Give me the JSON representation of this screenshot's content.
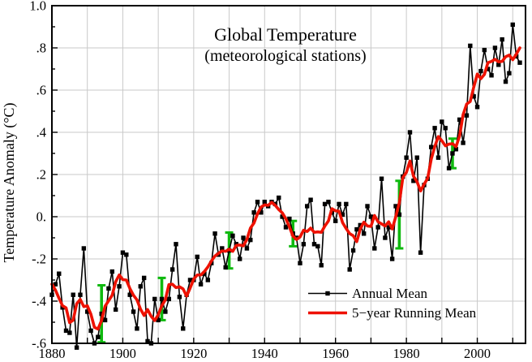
{
  "chart_data": {
    "type": "line",
    "title": "Global Temperature",
    "subtitle": "(meteorological stations)",
    "ylabel": "Temperature Anomaly (°C)",
    "xlabel": "",
    "x_range": [
      1880,
      2013.6
    ],
    "y_range": [
      -0.6,
      1.0
    ],
    "grid": {
      "x_step_years": 10,
      "y_step": 0.2,
      "color": "#c9c9c9",
      "visible": true
    },
    "x_ticks": {
      "label_years": [
        1880,
        1900,
        1920,
        1940,
        1960,
        1980,
        2000
      ],
      "labels": [
        "1880",
        "1900",
        "1920",
        "1940",
        "1960",
        "1980",
        "2000"
      ],
      "minor_step": 10
    },
    "y_ticks": {
      "values": [
        1.0,
        0.8,
        0.6,
        0.4,
        0.2,
        0.0,
        -0.2,
        -0.4,
        -0.6
      ],
      "labels": [
        "1.0",
        ".8",
        ".6",
        ".4",
        ".2",
        "0.",
        "-.2",
        "-.4",
        "-.6"
      ],
      "minor_step": 0.1
    },
    "legend": {
      "position": "lower-right",
      "entries": [
        {
          "label": "Annual Mean",
          "color": "#000000",
          "marker": "square",
          "line_width": 1.6
        },
        {
          "label": "5−year Running Mean",
          "color": "#ee1100",
          "marker": "none",
          "line_width": 3.6
        }
      ]
    },
    "series": [
      {
        "name": "Annual Mean",
        "color": "#000000",
        "start_year": 1880,
        "values": [
          -0.37,
          -0.32,
          -0.27,
          -0.43,
          -0.54,
          -0.55,
          -0.37,
          -0.62,
          -0.37,
          -0.15,
          -0.45,
          -0.54,
          -0.6,
          -0.57,
          -0.46,
          -0.49,
          -0.34,
          -0.26,
          -0.44,
          -0.33,
          -0.17,
          -0.18,
          -0.37,
          -0.45,
          -0.53,
          -0.33,
          -0.29,
          -0.59,
          -0.6,
          -0.39,
          -0.49,
          -0.39,
          -0.45,
          -0.39,
          -0.25,
          -0.13,
          -0.38,
          -0.53,
          -0.37,
          -0.3,
          -0.3,
          -0.19,
          -0.32,
          -0.27,
          -0.3,
          -0.22,
          -0.08,
          -0.18,
          -0.15,
          -0.24,
          -0.16,
          -0.09,
          -0.13,
          -0.2,
          -0.1,
          -0.15,
          -0.11,
          0.02,
          0.07,
          0.02,
          0.07,
          0.05,
          0.07,
          0.06,
          0.09,
          0.0,
          -0.05,
          -0.01,
          -0.08,
          -0.1,
          -0.22,
          -0.13,
          0.05,
          0.08,
          -0.13,
          -0.14,
          -0.23,
          0.06,
          0.07,
          0.02,
          -0.02,
          0.06,
          0.01,
          0.06,
          -0.25,
          -0.16,
          -0.06,
          -0.04,
          -0.08,
          0.05,
          0.0,
          -0.15,
          -0.05,
          0.18,
          -0.1,
          -0.05,
          -0.2,
          0.05,
          0.01,
          0.19,
          0.28,
          0.4,
          0.17,
          0.28,
          -0.17,
          0.15,
          0.18,
          0.33,
          0.42,
          0.28,
          0.45,
          0.42,
          0.23,
          0.3,
          0.32,
          0.46,
          0.35,
          0.48,
          0.81,
          0.57,
          0.52,
          0.69,
          0.79,
          0.7,
          0.67,
          0.8,
          0.72,
          0.84,
          0.64,
          0.68,
          0.91,
          0.76,
          0.73
        ]
      },
      {
        "name": "5-year Running Mean",
        "color": "#ee1100",
        "derived": "centered 5-year running mean of Annual Mean (window clipped at series ends)"
      }
    ],
    "error_bars": {
      "color": "#0fb90f",
      "points": [
        {
          "year": 1894,
          "center": -0.46,
          "half": 0.135
        },
        {
          "year": 1911,
          "center": -0.39,
          "half": 0.1
        },
        {
          "year": 1930,
          "center": -0.16,
          "half": 0.085
        },
        {
          "year": 1948,
          "center": -0.08,
          "half": 0.06
        },
        {
          "year": 1978,
          "center": 0.01,
          "half": 0.16
        },
        {
          "year": 1993,
          "center": 0.3,
          "half": 0.07
        }
      ]
    },
    "colors": {
      "background": "#ffffff",
      "frame": "#000000",
      "grid": "#c9c9c9",
      "annual": "#000000",
      "running": "#ee1100",
      "uncertainty": "#0fb90f"
    }
  }
}
